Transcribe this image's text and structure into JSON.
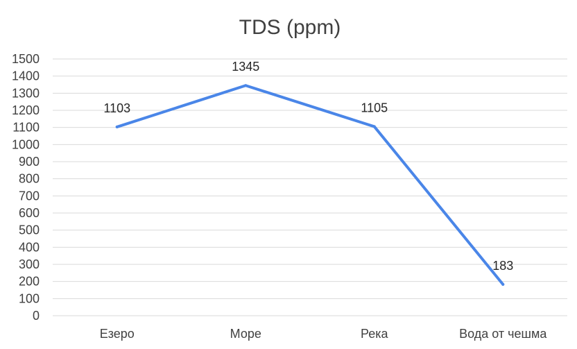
{
  "chart_data": {
    "type": "line",
    "title": "TDS (ppm)",
    "xlabel": "",
    "ylabel": "",
    "categories": [
      "Езеро",
      "Море",
      "Река",
      "Вода от чешма"
    ],
    "series": [
      {
        "values": [
          1103,
          1345,
          1105,
          183
        ],
        "data_labels": [
          "1103",
          "1345",
          "1105",
          "183"
        ]
      }
    ],
    "ylim": [
      0,
      1500
    ],
    "ytick_step": 100,
    "yticks": [
      "0",
      "100",
      "200",
      "300",
      "400",
      "500",
      "600",
      "700",
      "800",
      "900",
      "1000",
      "1100",
      "1200",
      "1300",
      "1400",
      "1500"
    ],
    "grid": true,
    "legend": "none",
    "colors": {
      "line": "#4A86E8",
      "grid": "#D9D9D9",
      "text": "#404040"
    }
  }
}
